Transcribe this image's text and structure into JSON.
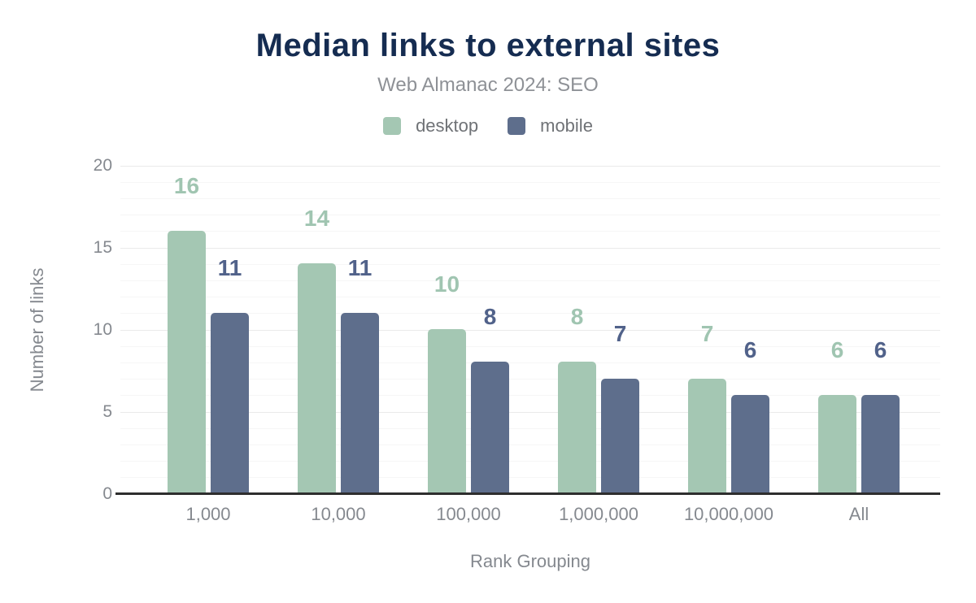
{
  "header": {
    "title": "Median links to external sites",
    "subtitle": "Web Almanac 2024: SEO"
  },
  "colors": {
    "title": "#152c51",
    "subtitle": "#8e9196",
    "tick_labels": "#85898f",
    "axis_line": "#2e2e2e",
    "major_gridline": "#eaeaea",
    "minor_gridline": "#f6f6f6",
    "desktop": "#a4c7b3",
    "mobile": "#5e6e8c"
  },
  "chart_data": {
    "type": "bar",
    "title": "Median links to external sites",
    "subtitle": "Web Almanac 2024: SEO",
    "xlabel": "Rank Grouping",
    "ylabel": "Number of links",
    "categories": [
      "1,000",
      "10,000",
      "100,000",
      "1,000,000",
      "10,000,000",
      "All"
    ],
    "series": [
      {
        "name": "desktop",
        "color": "#a4c7b3",
        "label_color": "#a0c5b1",
        "values": [
          16,
          14,
          10,
          8,
          7,
          6
        ]
      },
      {
        "name": "mobile",
        "color": "#5e6e8c",
        "label_color": "#51628a",
        "values": [
          11,
          11,
          8,
          7,
          6,
          6
        ]
      }
    ],
    "ylim": [
      0,
      20
    ],
    "yticks": [
      0,
      5,
      10,
      15,
      20
    ],
    "grid": {
      "orientation": "horizontal",
      "major_every": 5,
      "minor_every": 1
    },
    "legend_position": "top",
    "data_labels": true
  }
}
